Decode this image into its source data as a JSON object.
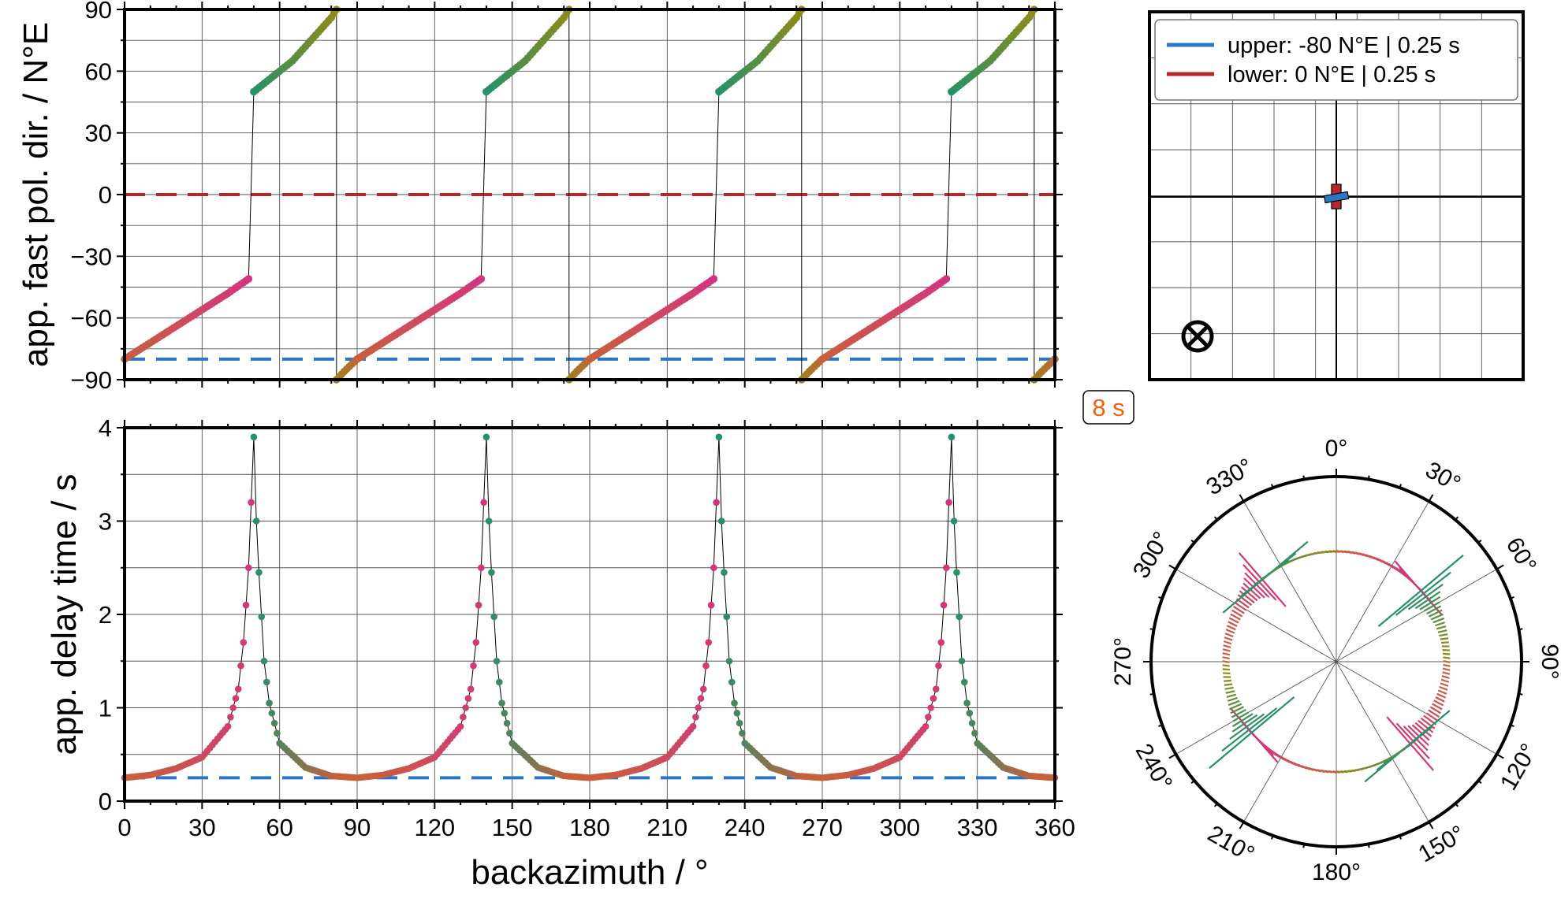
{
  "colors": {
    "upper_layer": "#2a78c5",
    "lower_layer": "#b8282a",
    "period_label": "#f2600a",
    "phi_branch_low": "#d4347f",
    "phi_branch_high": "#23926a",
    "phi_branch_mid": "#c8603c",
    "phi_branch_top": "#8f8a18",
    "frame": "#000000",
    "grid": "#555555"
  },
  "period_label": "8 s",
  "chart_data": [
    {
      "id": "phi_panel",
      "type": "scatter",
      "ylabel": "app. fast pol. dir. / N°E",
      "xlim": [
        0,
        360
      ],
      "ylim": [
        -90,
        90
      ],
      "xticks": [
        0,
        30,
        60,
        90,
        120,
        150,
        180,
        210,
        240,
        270,
        300,
        330,
        360
      ],
      "yticks": [
        -90,
        -60,
        -30,
        0,
        30,
        60,
        90
      ],
      "ytick_labels": [
        "−90",
        "−60",
        "−30",
        "0",
        "30",
        "60",
        "90"
      ],
      "grid": true,
      "symmetry_period_deg": 90,
      "reference_lines": [
        {
          "layer": "upper",
          "y": -80,
          "style": "dashed"
        },
        {
          "layer": "lower",
          "y": 0,
          "style": "dashed"
        }
      ],
      "series": [
        {
          "segment": 1,
          "x": [
            0,
            10,
            20,
            30,
            40,
            48
          ],
          "y": [
            -80,
            -72,
            -64,
            -56,
            -48,
            -41
          ]
        },
        {
          "segment": 2,
          "x": [
            50,
            55,
            60,
            65,
            70,
            75,
            80,
            82
          ],
          "y": [
            50,
            55,
            60,
            65,
            72,
            79,
            86,
            90
          ]
        },
        {
          "segment": 3,
          "x": [
            82,
            85,
            90
          ],
          "y": [
            -90,
            -86,
            -80
          ]
        }
      ]
    },
    {
      "id": "dt_panel",
      "type": "scatter",
      "xlabel": "backazimuth / °",
      "ylabel": "app. delay time / s",
      "xlim": [
        0,
        360
      ],
      "ylim": [
        0,
        4
      ],
      "xticks": [
        0,
        30,
        60,
        90,
        120,
        150,
        180,
        210,
        240,
        270,
        300,
        330,
        360
      ],
      "yticks": [
        0,
        1,
        2,
        3,
        4
      ],
      "grid": true,
      "symmetry_period_deg": 90,
      "reference_lines": [
        {
          "layer": "upper",
          "y": 0.25,
          "style": "dashed"
        }
      ],
      "peaks_x": [
        50,
        140,
        230,
        320
      ],
      "peak_value": 3.9,
      "baseline_value": 0.25,
      "series": [
        {
          "segment": 1,
          "x": [
            0,
            10,
            20,
            30,
            40,
            44,
            46,
            48,
            49,
            50
          ],
          "y": [
            0.25,
            0.28,
            0.35,
            0.47,
            0.8,
            1.2,
            1.7,
            2.5,
            3.2,
            3.9
          ]
        },
        {
          "segment": 2,
          "x": [
            50,
            51,
            52,
            54,
            56,
            60,
            70,
            80,
            90
          ],
          "y": [
            3.9,
            3.0,
            2.45,
            1.5,
            1.05,
            0.62,
            0.36,
            0.27,
            0.25
          ]
        }
      ]
    },
    {
      "id": "legend_panel",
      "type": "line",
      "legend": [
        {
          "layer": "upper",
          "label": "upper: -80 N°E | 0.25 s"
        },
        {
          "layer": "lower",
          "label": "lower: 0 N°E | 0.25 s"
        }
      ],
      "upper_layer": {
        "phi_deg": -80,
        "dt_s": 0.25
      },
      "lower_layer": {
        "phi_deg": 0,
        "dt_s": 0.25
      },
      "grid": true,
      "legend_position": "top",
      "wave_direction_symbol": "into-page"
    },
    {
      "id": "polar_panel",
      "type": "line",
      "projection": "polar",
      "angle_labels": [
        "0°",
        "30°",
        "60°",
        "90°",
        "120°",
        "150°",
        "180°",
        "210°",
        "240°",
        "270°",
        "300°",
        "330°"
      ],
      "angle_ticks_deg": [
        0,
        30,
        60,
        90,
        120,
        150,
        180,
        210,
        240,
        270,
        300,
        330
      ],
      "grid": true
    }
  ]
}
